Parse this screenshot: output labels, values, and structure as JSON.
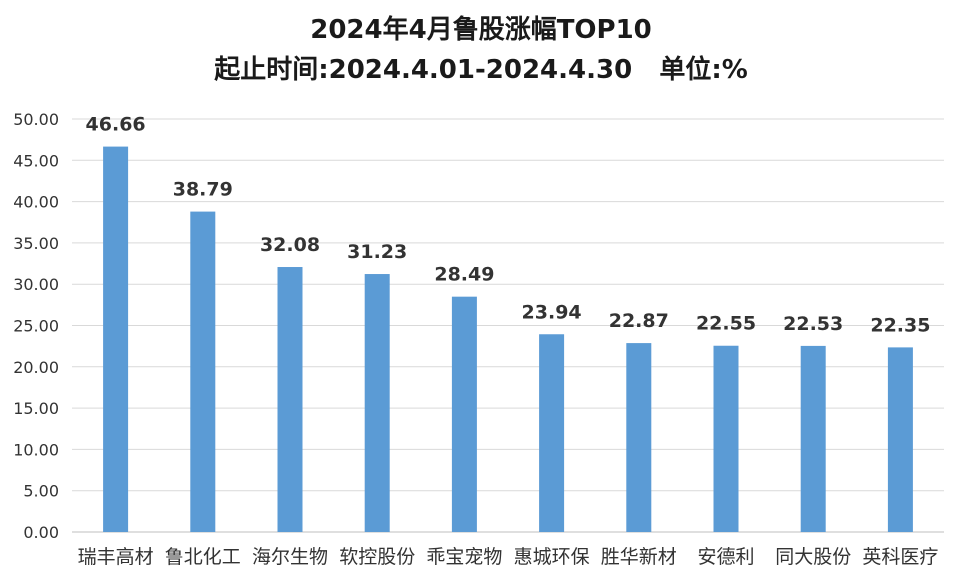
{
  "chart_data": {
    "type": "bar",
    "title": "2024年4月鲁股涨幅TOP10",
    "subtitle": "起止时间:2024.4.01-2024.4.30   单位:%",
    "categories": [
      "瑞丰高材",
      "鲁北化工",
      "海尔生物",
      "软控股份",
      "乖宝宠物",
      "惠城环保",
      "胜华新材",
      "安德利",
      "同大股份",
      "英科医疗"
    ],
    "values": [
      46.66,
      38.79,
      32.08,
      31.23,
      28.49,
      23.94,
      22.87,
      22.55,
      22.53,
      22.35
    ],
    "value_labels": [
      "46.66",
      "38.79",
      "32.08",
      "31.23",
      "28.49",
      "23.94",
      "22.87",
      "22.55",
      "22.53",
      "22.35"
    ],
    "ylim": [
      0,
      50
    ],
    "yticks": [
      "0.00",
      "5.00",
      "10.00",
      "15.00",
      "20.00",
      "25.00",
      "30.00",
      "35.00",
      "40.00",
      "45.00",
      "50.00"
    ],
    "grid": true,
    "bar_color": "#5b9bd5",
    "xlabel": "",
    "ylabel": ""
  }
}
